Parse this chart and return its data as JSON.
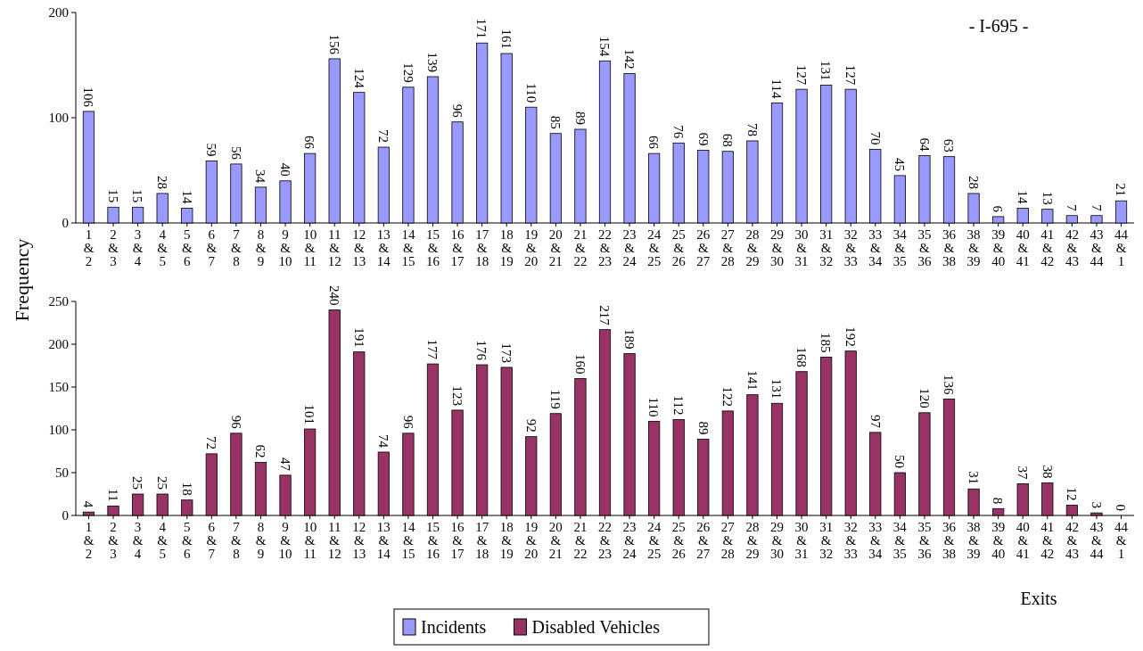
{
  "chart_data": [
    {
      "type": "bar",
      "title": "- I-695 -",
      "ylabel": "Frequency",
      "categories": [
        "1 & 2",
        "2 & 3",
        "3 & 4",
        "4 & 5",
        "5 & 6",
        "6 & 7",
        "7 & 8",
        "8 & 9",
        "9 & 10",
        "10 & 11",
        "11 & 12",
        "12 & 13",
        "13 & 14",
        "14 & 15",
        "15 & 16",
        "16 & 17",
        "17 & 18",
        "18 & 19",
        "19 & 20",
        "20 & 21",
        "21 & 22",
        "22 & 23",
        "23 & 24",
        "24 & 25",
        "25 & 26",
        "26 & 27",
        "27 & 28",
        "28 & 29",
        "29 & 30",
        "30 & 31",
        "31 & 32",
        "32 & 33",
        "33 & 34",
        "34 & 35",
        "35 & 36",
        "36 & 38",
        "38 & 39",
        "39 & 40",
        "40 & 41",
        "41 & 42",
        "42 & 43",
        "43 & 44",
        "44 & 1"
      ],
      "series": [
        {
          "name": "Incidents",
          "color": "#9999ff",
          "values": [
            106,
            15,
            15,
            28,
            14,
            59,
            56,
            34,
            40,
            66,
            156,
            124,
            72,
            129,
            139,
            96,
            171,
            161,
            110,
            85,
            89,
            154,
            142,
            66,
            76,
            69,
            68,
            78,
            114,
            127,
            131,
            127,
            70,
            45,
            64,
            63,
            28,
            6,
            14,
            13,
            7,
            7,
            21
          ]
        }
      ],
      "ylim": [
        0,
        200
      ],
      "yticks": [
        0,
        100,
        200
      ],
      "data_labels": true,
      "legend": "bottom"
    },
    {
      "type": "bar",
      "xlabel": "Exits",
      "categories": [
        "1 & 2",
        "2 & 3",
        "3 & 4",
        "4 & 5",
        "5 & 6",
        "6 & 7",
        "7 & 8",
        "8 & 9",
        "9 & 10",
        "10 & 11",
        "11 & 12",
        "12 & 13",
        "13 & 14",
        "14 & 15",
        "15 & 16",
        "16 & 17",
        "17 & 18",
        "18 & 19",
        "19 & 20",
        "20 & 21",
        "21 & 22",
        "22 & 23",
        "23 & 24",
        "24 & 25",
        "25 & 26",
        "26 & 27",
        "27 & 28",
        "28 & 29",
        "29 & 30",
        "30 & 31",
        "31 & 32",
        "32 & 33",
        "33 & 34",
        "34 & 35",
        "35 & 36",
        "36 & 38",
        "38 & 39",
        "39 & 40",
        "40 & 41",
        "41 & 42",
        "42 & 43",
        "43 & 44",
        "44 & 1"
      ],
      "series": [
        {
          "name": "Disabled Vehicles",
          "color": "#993366",
          "values": [
            4,
            11,
            25,
            25,
            18,
            72,
            96,
            62,
            47,
            101,
            240,
            191,
            74,
            96,
            177,
            123,
            176,
            173,
            92,
            119,
            160,
            217,
            189,
            110,
            112,
            89,
            122,
            141,
            131,
            168,
            185,
            192,
            97,
            50,
            120,
            136,
            31,
            8,
            37,
            38,
            12,
            3,
            0
          ]
        }
      ],
      "ylim": [
        0,
        250
      ],
      "yticks": [
        0,
        50,
        100,
        150,
        200,
        250
      ],
      "data_labels": true,
      "legend": "bottom"
    }
  ]
}
